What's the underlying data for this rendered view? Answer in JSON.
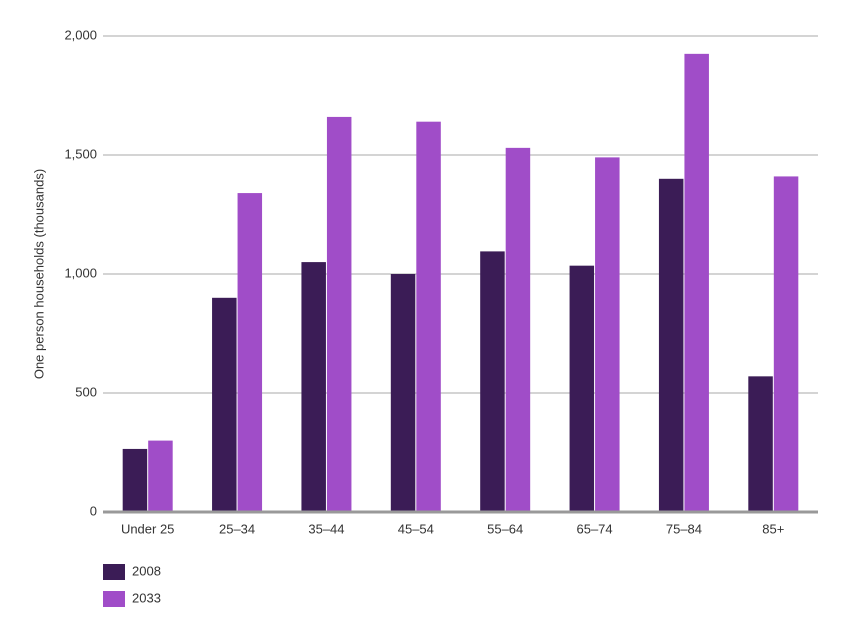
{
  "chart_data": {
    "type": "bar",
    "y_label": "One person households (thousands)",
    "categories": [
      "Under 25",
      "25–34",
      "35–44",
      "45–54",
      "55–64",
      "65–74",
      "75–84",
      "85+"
    ],
    "series": [
      {
        "name": "2008",
        "color": "#3b1c56",
        "values": [
          265,
          900,
          1050,
          1000,
          1095,
          1035,
          1400,
          570
        ]
      },
      {
        "name": "2033",
        "color": "#a04dc8",
        "values": [
          300,
          1340,
          1660,
          1640,
          1530,
          1490,
          1925,
          1410
        ]
      }
    ],
    "ylim": [
      0,
      2000
    ],
    "yticks": [
      0,
      500,
      {
        "value": 1000,
        "label": "1,000"
      },
      {
        "value": 1500,
        "label": "1,500"
      },
      {
        "value": 2000,
        "label": "2,000"
      }
    ],
    "grid": true,
    "legend": "bottom-left"
  }
}
